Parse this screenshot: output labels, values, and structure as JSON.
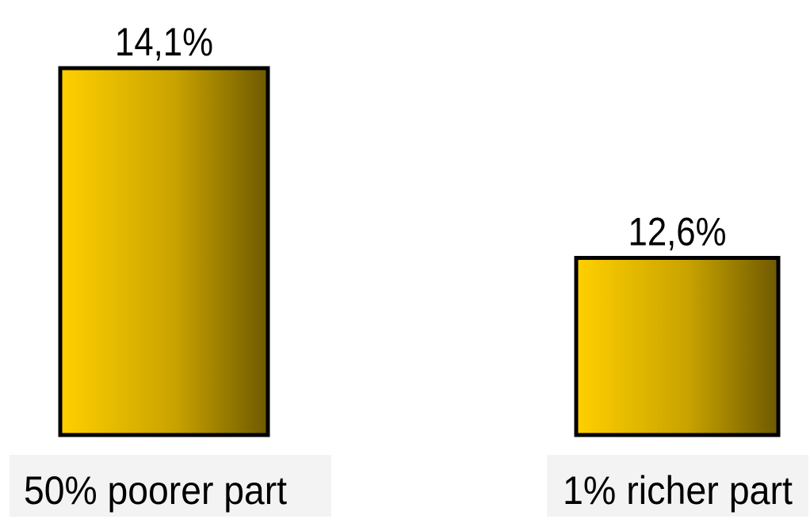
{
  "chart_data": {
    "type": "bar",
    "categories": [
      "50% poorer part",
      "1% richer part"
    ],
    "values": [
      14.1,
      12.6
    ],
    "value_labels": [
      "14,1%",
      "12,6%"
    ],
    "title": "",
    "xlabel": "",
    "ylabel": "",
    "ylim": [
      11.2,
      14.1
    ],
    "grid": false,
    "legend": "none",
    "colors": {
      "bar_gradient_start": "#ffd000",
      "bar_gradient_mid": "#c9a300",
      "bar_gradient_end": "#6e5a00",
      "bar_outline": "#000000",
      "category_label_bg": "#f3f3f3"
    }
  }
}
